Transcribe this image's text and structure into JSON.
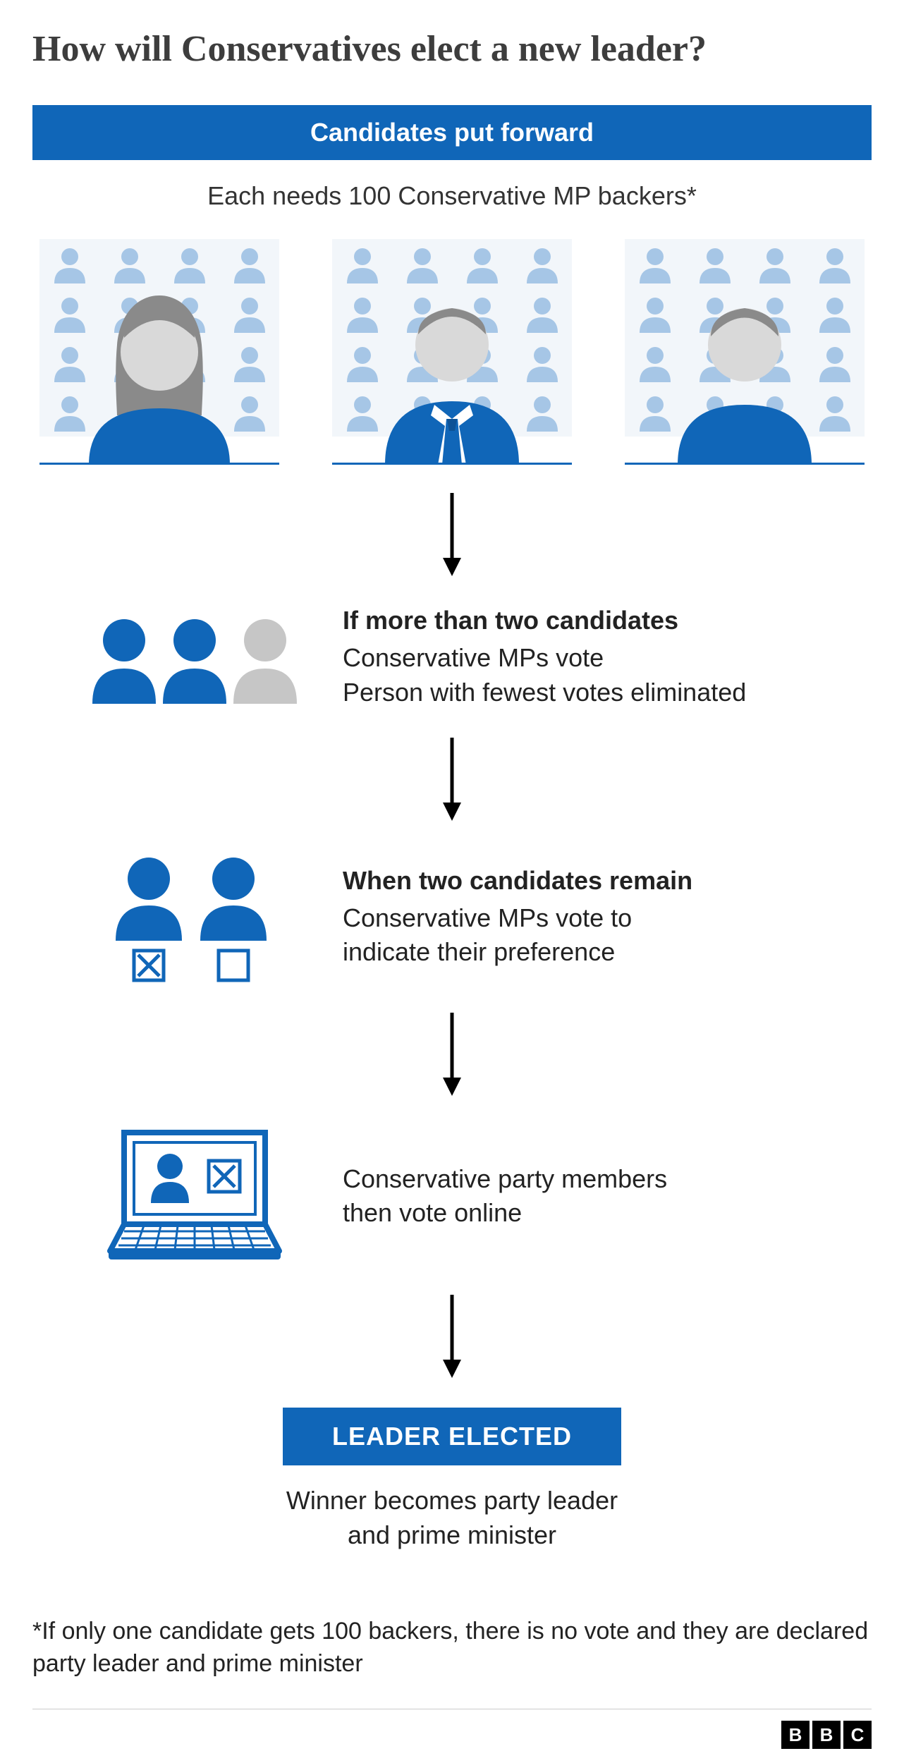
{
  "colors": {
    "accent": "#1066b8",
    "text": "#333333",
    "grey_person": "#8f8f8f",
    "light_person": "#c6c6c6",
    "backer_tint": "#a6c6e6",
    "backer_bg": "#f2f6fa",
    "arrow": "#000000",
    "hair_grey": "#8a8a8a",
    "skin_grey": "#d9d9d9"
  },
  "title": "How will Conservatives elect a new leader?",
  "banner1": "Candidates put forward",
  "subtitle": "Each needs 100 Conservative MP backers*",
  "step_more": {
    "heading": "If more than two candidates",
    "line1": "Conservative MPs vote",
    "line2": "Person with fewest votes eliminated"
  },
  "step_two": {
    "heading": "When two candidates remain",
    "line1": "Conservative MPs vote to",
    "line2": "indicate their preference"
  },
  "step_online": {
    "line1": "Conservative party members",
    "line2": "then vote online"
  },
  "final_banner": "LEADER ELECTED",
  "final_line1": "Winner becomes party leader",
  "final_line2": "and prime minister",
  "footnote": "*If only one candidate gets 100 backers, there is no vote and they are declared party leader and prime minister",
  "logo": [
    "B",
    "B",
    "C"
  ]
}
